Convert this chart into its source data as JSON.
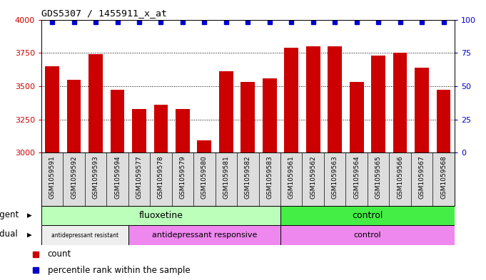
{
  "title": "GDS5307 / 1455911_x_at",
  "samples": [
    "GSM1059591",
    "GSM1059592",
    "GSM1059593",
    "GSM1059594",
    "GSM1059577",
    "GSM1059578",
    "GSM1059579",
    "GSM1059580",
    "GSM1059581",
    "GSM1059582",
    "GSM1059583",
    "GSM1059561",
    "GSM1059562",
    "GSM1059563",
    "GSM1059564",
    "GSM1059565",
    "GSM1059566",
    "GSM1059567",
    "GSM1059568"
  ],
  "counts": [
    3650,
    3550,
    3740,
    3470,
    3330,
    3360,
    3330,
    3090,
    3610,
    3530,
    3560,
    3790,
    3800,
    3800,
    3530,
    3730,
    3750,
    3640,
    3470
  ],
  "ylim_left": [
    3000,
    4000
  ],
  "ylim_right": [
    0,
    100
  ],
  "yticks_left": [
    3000,
    3250,
    3500,
    3750,
    4000
  ],
  "yticks_right": [
    0,
    25,
    50,
    75,
    100
  ],
  "grid_yticks": [
    3250,
    3500,
    3750
  ],
  "bar_color": "#cc0000",
  "dot_color": "#0000cc",
  "background_color": "#ffffff",
  "xtick_bg": "#dddddd",
  "agent_groups": [
    {
      "label": "fluoxetine",
      "start": 0,
      "end": 11,
      "color": "#bbffbb"
    },
    {
      "label": "control",
      "start": 11,
      "end": 19,
      "color": "#44ee44"
    }
  ],
  "individual_groups": [
    {
      "label": "antidepressant resistant",
      "start": 0,
      "end": 4,
      "color": "#eeeeee"
    },
    {
      "label": "antidepressant responsive",
      "start": 4,
      "end": 11,
      "color": "#ee88ee"
    },
    {
      "label": "control",
      "start": 11,
      "end": 19,
      "color": "#ee88ee"
    }
  ],
  "indiv_fontsizes": {
    "antidepressant resistant": 5.5,
    "antidepressant responsive": 8,
    "control": 8
  }
}
